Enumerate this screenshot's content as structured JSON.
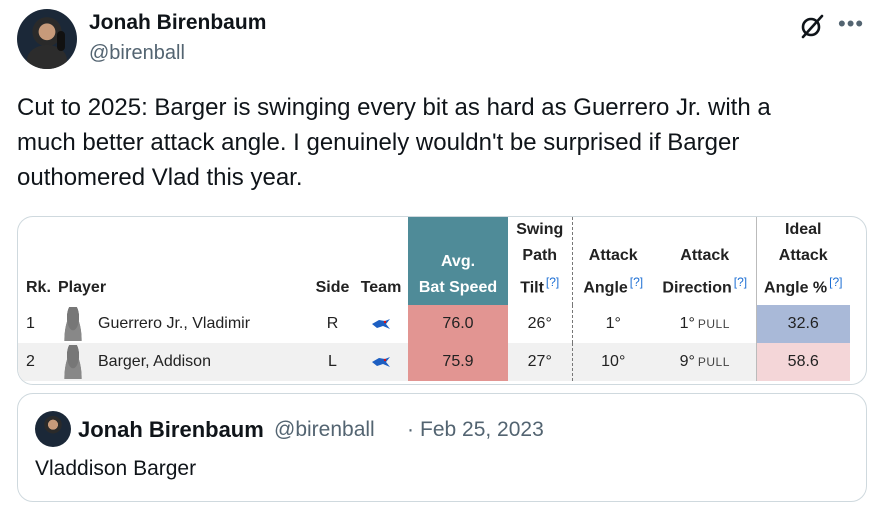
{
  "author": {
    "display_name": "Jonah Birenbaum",
    "handle": "@birenball"
  },
  "icons": {
    "grok": "grok-icon",
    "more": "more-horizontal-icon"
  },
  "tweet": {
    "text_line1": "Cut to 2025: Barger is swinging every bit as hard as Guerrero Jr. with a",
    "text_line2": "much better attack angle. I genuinely wouldn't be surprised if Barger",
    "text_line3": "outhomered Vlad this year."
  },
  "table": {
    "headers": {
      "rk": "Rk.",
      "player": "Player",
      "side": "Side",
      "team": "Team",
      "avg_line1": "Avg.",
      "avg_line2": "Bat Speed",
      "swing_line1": "Swing",
      "swing_line2": "Path",
      "swing_line3": "Tilt",
      "attack_angle_line1": "Attack",
      "attack_angle_line2": "Angle",
      "attack_dir_line1": "Attack",
      "attack_dir_line2": "Direction",
      "ideal_line1": "Ideal",
      "ideal_line2": "Attack",
      "ideal_line3": "Angle %",
      "help_mark": "[?]"
    },
    "rows": [
      {
        "rk": "1",
        "player": "Guerrero Jr., Vladimir",
        "side": "R",
        "bat_speed": "76.0",
        "swing_tilt": "26°",
        "attack_angle": "1°",
        "attack_dir": "1°",
        "attack_dir_label": "PULL",
        "ideal_pct": "32.6"
      },
      {
        "rk": "2",
        "player": "Barger, Addison",
        "side": "L",
        "bat_speed": "75.9",
        "swing_tilt": "27°",
        "attack_angle": "10°",
        "attack_dir": "9°",
        "attack_dir_label": "PULL",
        "ideal_pct": "58.6"
      }
    ]
  },
  "quote": {
    "display_name": "Jonah Birenbaum",
    "handle": "@birenball",
    "separator": "·",
    "date": "Feb 25, 2023",
    "text": "Vladdison Barger"
  },
  "colors": {
    "bat_speed_header": "#4f8b98",
    "bat_speed_cell": "#e29592",
    "ideal_low": "#a9b9d8",
    "ideal_high": "#f4d6d8",
    "help_link": "#1d6fd4"
  }
}
